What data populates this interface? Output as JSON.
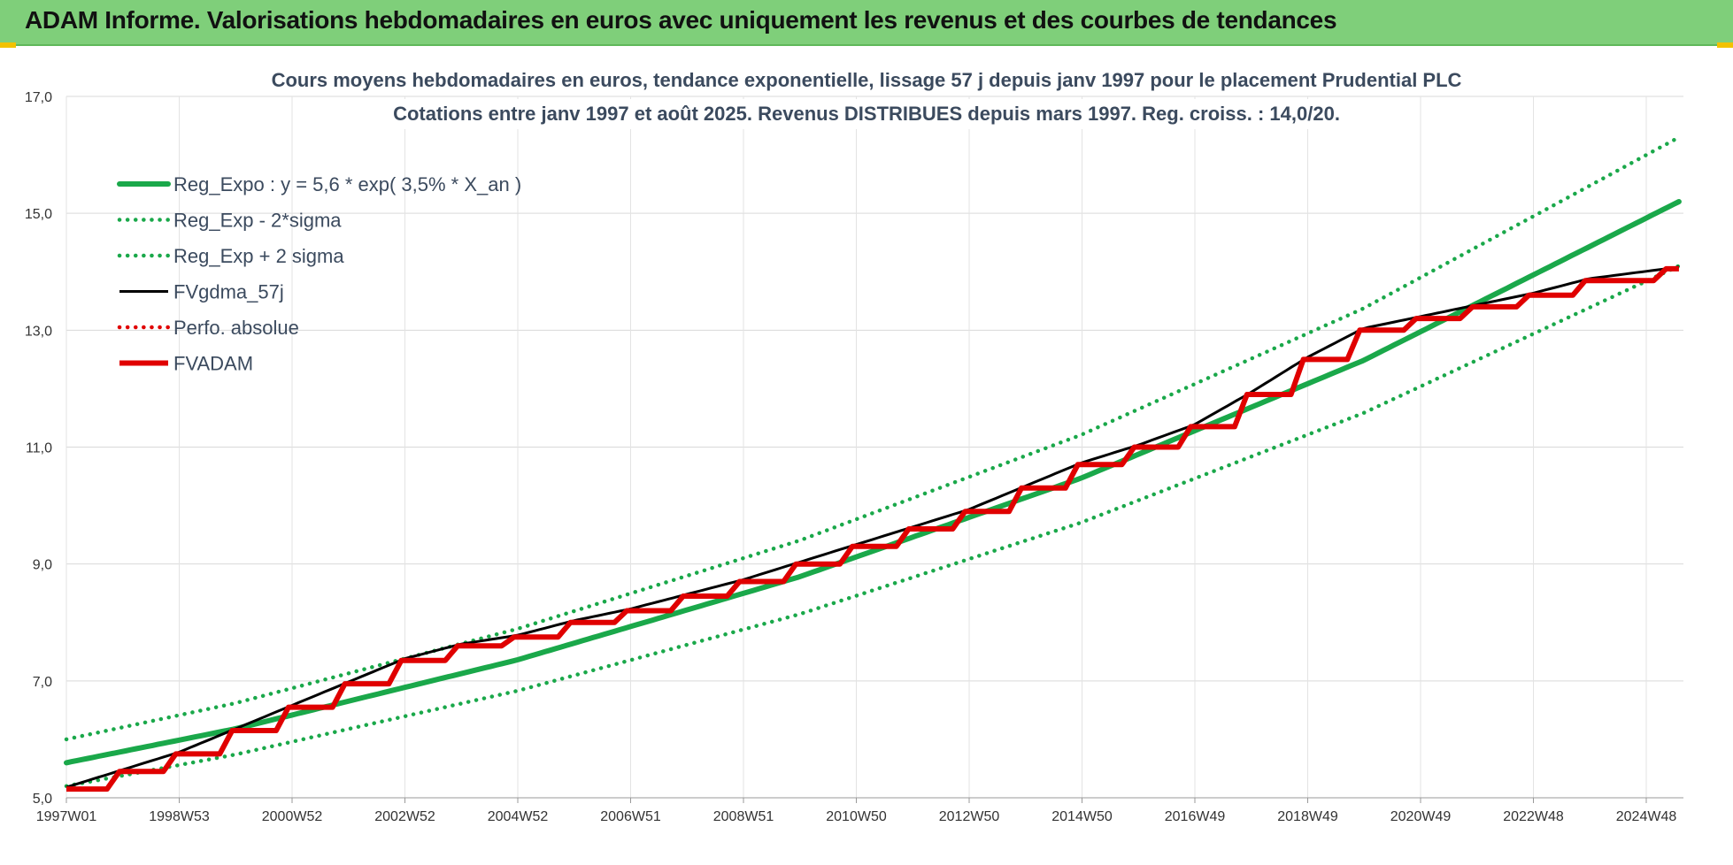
{
  "header": {
    "title": "ADAM Informe. Valorisations hebdomadaires en euros avec uniquement les revenus et des courbes de tendances"
  },
  "colors": {
    "banner": "#7fcf7a",
    "regression": "#1aa84a",
    "black_series": "#000000",
    "red_series": "#e00000"
  },
  "chart_data": {
    "type": "line",
    "title": "Cours moyens hebdomadaires en euros, tendance exponentielle, lissage 57 j depuis janv 1997 pour le placement Prudential PLC",
    "subtitle": "Cotations entre janv 1997 et août 2025.  Revenus DISTRIBUES depuis mars 1997. Reg. croiss. : 14,0/20.",
    "xlabel": "",
    "ylabel": "",
    "x_range": [
      "1997W01",
      "2025W35"
    ],
    "ylim": [
      5.0,
      17.0
    ],
    "yticks": [
      "5,0",
      "7,0",
      "9,0",
      "11,0",
      "13,0",
      "15,0",
      "17,0"
    ],
    "xticks": [
      "1997W01",
      "1998W53",
      "2000W52",
      "2002W52",
      "2004W52",
      "2006W51",
      "2008W51",
      "2010W50",
      "2012W50",
      "2014W50",
      "2016W49",
      "2018W49",
      "2020W49",
      "2022W48",
      "2024W48"
    ],
    "grid": true,
    "legend_position": "top-left",
    "series": [
      {
        "name": "Reg_Expo : y = 5,6 * exp( 3,5% *  X_an )",
        "style": "solid-thick",
        "color": "#1aa84a",
        "x": [
          1997.0,
          2000.0,
          2005.0,
          2010.0,
          2015.0,
          2020.0,
          2025.6
        ],
        "values": [
          5.6,
          6.18,
          7.36,
          8.78,
          10.47,
          12.48,
          15.2
        ]
      },
      {
        "name": "Reg_Exp - 2*sigma",
        "style": "dotted",
        "color": "#1aa84a",
        "x": [
          1997.0,
          2000.0,
          2005.0,
          2010.0,
          2015.0,
          2020.0,
          2025.6
        ],
        "values": [
          5.2,
          5.74,
          6.83,
          8.14,
          9.71,
          11.58,
          14.1
        ]
      },
      {
        "name": "Reg_Exp + 2 sigma",
        "style": "dotted",
        "color": "#1aa84a",
        "x": [
          1997.0,
          2000.0,
          2005.0,
          2010.0,
          2015.0,
          2020.0,
          2025.6
        ],
        "values": [
          6.0,
          6.62,
          7.89,
          9.4,
          11.21,
          13.37,
          16.3
        ]
      },
      {
        "name": "FVgdma_57j",
        "style": "solid",
        "color": "#000000",
        "x": [
          1997.0,
          1998.0,
          1999.0,
          2000.0,
          2001.0,
          2002.0,
          2003.0,
          2004.0,
          2005.0,
          2006.0,
          2007.0,
          2008.0,
          2009.0,
          2010.0,
          2011.0,
          2012.0,
          2013.0,
          2014.0,
          2015.0,
          2016.0,
          2017.0,
          2018.0,
          2019.0,
          2020.0,
          2021.0,
          2022.0,
          2023.0,
          2024.0,
          2025.6
        ],
        "values": [
          5.15,
          5.45,
          5.75,
          6.15,
          6.55,
          6.95,
          7.35,
          7.6,
          7.75,
          8.0,
          8.2,
          8.45,
          8.7,
          9.0,
          9.3,
          9.6,
          9.9,
          10.3,
          10.7,
          11.0,
          11.35,
          11.9,
          12.5,
          13.0,
          13.2,
          13.4,
          13.6,
          13.85,
          14.05
        ]
      },
      {
        "name": "Perfo. absolue",
        "style": "dotted",
        "color": "#e00000",
        "x": [],
        "values": []
      },
      {
        "name": "FVADAM",
        "style": "step-thick",
        "color": "#e00000",
        "x": [
          1997.0,
          1998.0,
          1999.0,
          2000.0,
          2001.0,
          2002.0,
          2003.0,
          2004.0,
          2005.0,
          2006.0,
          2007.0,
          2008.0,
          2009.0,
          2010.0,
          2011.0,
          2012.0,
          2013.0,
          2014.0,
          2015.0,
          2016.0,
          2017.0,
          2018.0,
          2019.0,
          2020.0,
          2021.0,
          2022.0,
          2023.0,
          2024.0,
          2025.6
        ],
        "values": [
          5.15,
          5.45,
          5.75,
          6.15,
          6.55,
          6.95,
          7.35,
          7.6,
          7.75,
          8.0,
          8.2,
          8.45,
          8.7,
          9.0,
          9.3,
          9.6,
          9.9,
          10.3,
          10.7,
          11.0,
          11.35,
          11.9,
          12.5,
          13.0,
          13.2,
          13.4,
          13.6,
          13.85,
          14.05
        ]
      }
    ]
  }
}
